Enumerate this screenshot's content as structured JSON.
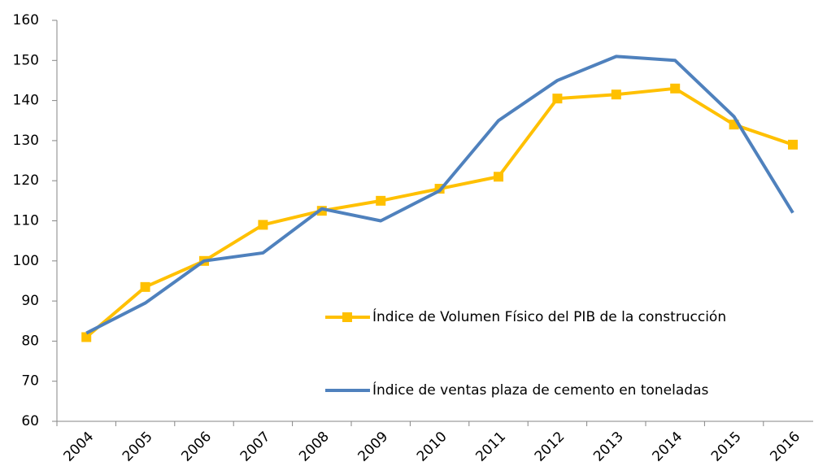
{
  "chart_data": {
    "type": "line",
    "categories": [
      "2004",
      "2005",
      "2006",
      "2007",
      "2008",
      "2009",
      "2010",
      "2011",
      "2012",
      "2013",
      "2014",
      "2015",
      "2016"
    ],
    "series": [
      {
        "name": "Índice de Volumen Físico del PIB de la construcción",
        "color": "#ffc000",
        "marker": "square",
        "values": [
          81,
          93.5,
          100,
          109,
          112.5,
          115,
          118,
          121,
          140.5,
          141.5,
          143,
          134,
          129
        ]
      },
      {
        "name": "Índice de ventas plaza de cemento en toneladas",
        "color": "#4f81bd",
        "marker": "none",
        "values": [
          82,
          89.5,
          100,
          102,
          113,
          110,
          117.5,
          135,
          145,
          151,
          150,
          136,
          112
        ]
      }
    ],
    "ylim": [
      60,
      160
    ],
    "yticks": [
      60,
      70,
      80,
      90,
      100,
      110,
      120,
      130,
      140,
      150,
      160
    ],
    "grid": false,
    "legend": "center"
  }
}
